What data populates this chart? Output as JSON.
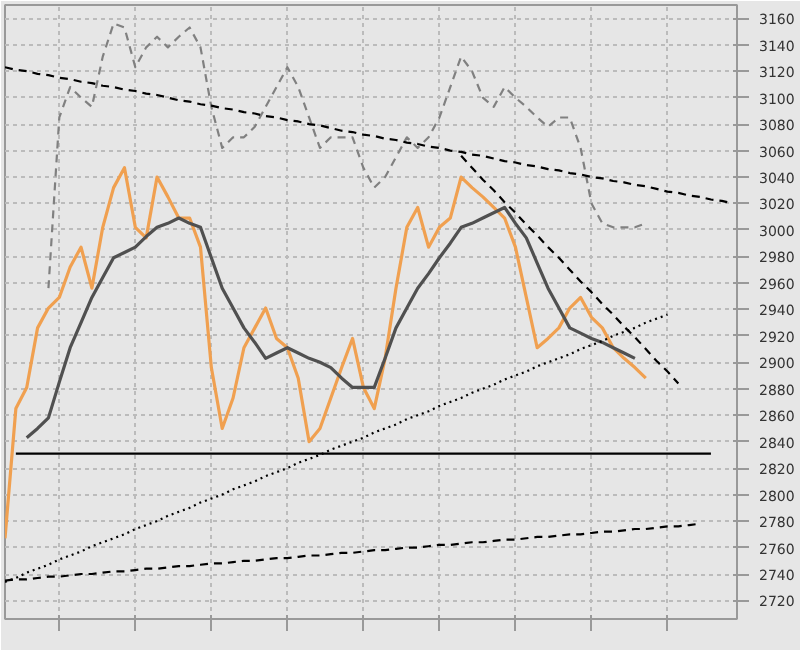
{
  "chart_data": {
    "type": "line",
    "ylim": [
      2706,
      3170
    ],
    "yticks": [
      2720,
      2740,
      2760,
      2780,
      2800,
      2820,
      2840,
      2860,
      2880,
      2900,
      2920,
      2940,
      2960,
      2980,
      3000,
      3020,
      3040,
      3060,
      3080,
      3100,
      3120,
      3140,
      3160
    ],
    "categories": [
      null,
      null,
      null,
      null,
      null,
      null,
      null,
      null,
      null,
      null,
      null,
      null,
      null,
      null,
      null,
      null,
      null,
      null,
      null,
      null,
      null,
      null,
      null,
      null,
      null,
      null,
      null,
      null,
      null,
      null,
      null,
      null,
      null,
      null,
      null,
      null,
      null,
      null,
      null,
      null,
      null,
      null,
      null,
      null,
      null,
      null,
      null,
      null,
      null,
      null,
      null,
      null,
      null,
      null,
      null,
      null,
      null,
      null,
      null,
      null,
      null,
      null,
      null,
      null,
      null,
      null,
      null,
      null
    ],
    "tick_labels": "y",
    "grid": true,
    "series": [
      {
        "color": "#f0a050",
        "line_style": "solid",
        "values": [
          2767,
          2865,
          2881,
          2926,
          2941,
          2949,
          2972,
          2987,
          2956,
          3002,
          3032,
          3047,
          3002,
          2994,
          3040,
          3025,
          3009,
          3009,
          2987,
          2896,
          2850,
          2873,
          2911,
          2926,
          2941,
          2918,
          2911,
          2888,
          2840,
          2850,
          2873,
          2896,
          2918,
          2881,
          2865,
          2903,
          2956,
          3002,
          3017,
          2987,
          3002,
          3009,
          3040,
          3032,
          3025,
          3017,
          3009,
          2987,
          2949,
          2911,
          2918,
          2926,
          2941,
          2949,
          2934,
          2926,
          2911,
          2903,
          2896,
          2888,
          null,
          null,
          null,
          null,
          null,
          null,
          null,
          null
        ]
      },
      {
        "color": "#505050",
        "line_style": "solid",
        "values": [
          null,
          null,
          2843,
          2850,
          2858,
          2885,
          2911,
          2930,
          2949,
          2964,
          2979,
          2983,
          2987,
          2995,
          3002,
          3005,
          3009,
          3005,
          3002,
          2979,
          2956,
          2941,
          2926,
          2915,
          2903,
          2907,
          2911,
          2907,
          2903,
          2900,
          2896,
          2888,
          2881,
          2881,
          2881,
          2903,
          2926,
          2941,
          2956,
          2967,
          2979,
          2990,
          3002,
          3005,
          3009,
          3013,
          3017,
          3005,
          2994,
          2975,
          2956,
          2941,
          2926,
          2922,
          2918,
          2915,
          2911,
          2907,
          2903,
          null,
          null,
          null,
          null,
          null,
          null,
          null,
          null,
          null
        ]
      },
      {
        "color": "#808080",
        "line_style": "dashed",
        "values": [
          null,
          null,
          null,
          null,
          2956,
          3085,
          3108,
          3100,
          3093,
          3131,
          3156,
          3153,
          3123,
          3138,
          3146,
          3138,
          3146,
          3153,
          3138,
          3093,
          3062,
          3070,
          3070,
          3078,
          3093,
          3108,
          3123,
          3108,
          3085,
          3062,
          3070,
          3070,
          3070,
          3047,
          3032,
          3040,
          3055,
          3070,
          3062,
          3070,
          3085,
          3108,
          3131,
          3120,
          3100,
          3093,
          3108,
          3100,
          3093,
          3085,
          3078,
          3085,
          3085,
          3062,
          3020,
          3005,
          3002,
          3002,
          3002,
          3005,
          null,
          null,
          null,
          null,
          null,
          null,
          null,
          null
        ]
      },
      {
        "color": "#000000",
        "line_style": "dashed",
        "values": [
          3123,
          3121,
          3120,
          3118,
          3117,
          3115,
          3114,
          3112,
          3111,
          3109,
          3108,
          3106,
          3105,
          3103,
          3102,
          3100,
          3098,
          3097,
          3095,
          3094,
          3092,
          3091,
          3089,
          3088,
          3086,
          3085,
          3083,
          3082,
          3080,
          3079,
          3077,
          3075,
          3074,
          3072,
          3071,
          3069,
          3068,
          3066,
          3065,
          3063,
          3062,
          3060,
          3059,
          3057,
          3056,
          3054,
          3052,
          3051,
          3049,
          3048,
          3046,
          3045,
          3043,
          3042,
          3040,
          3039,
          3037,
          3036,
          3034,
          3033,
          3031,
          3029,
          3028,
          3026,
          3025,
          3023,
          3022,
          3020
        ]
      },
      {
        "color": "#000000",
        "line_style": "solid",
        "values": [
          null,
          2831,
          2831,
          2831,
          2831,
          2831,
          2831,
          2831,
          2831,
          2831,
          2831,
          2831,
          2831,
          2831,
          2831,
          2831,
          2831,
          2831,
          2831,
          2831,
          2831,
          2831,
          2831,
          2831,
          2831,
          2831,
          2831,
          2831,
          2831,
          2831,
          2831,
          2831,
          2831,
          2831,
          2831,
          2831,
          2831,
          2831,
          2831,
          2831,
          2831,
          2831,
          2831,
          2831,
          2831,
          2831,
          2831,
          2831,
          2831,
          2831,
          2831,
          2831,
          2831,
          2831,
          2831,
          2831,
          2831,
          2831,
          2831,
          2831,
          2831,
          2831,
          2831,
          2831,
          2831,
          2831,
          null,
          null
        ]
      },
      {
        "color": "#000000",
        "line_style": "dotted",
        "values": [
          2734,
          2737,
          2741,
          2744,
          2747,
          2751,
          2754,
          2757,
          2761,
          2764,
          2767,
          2770,
          2774,
          2777,
          2780,
          2784,
          2787,
          2790,
          2794,
          2797,
          2800,
          2804,
          2807,
          2810,
          2814,
          2817,
          2820,
          2824,
          2827,
          2830,
          2834,
          2837,
          2840,
          2843,
          2847,
          2850,
          2853,
          2857,
          2860,
          2863,
          2867,
          2870,
          2873,
          2877,
          2880,
          2883,
          2887,
          2890,
          2893,
          2897,
          2900,
          2903,
          2906,
          2910,
          2913,
          2916,
          2920,
          2923,
          2926,
          2930,
          2933,
          2936,
          null,
          null,
          null,
          null,
          null,
          null
        ]
      },
      {
        "color": "#000000",
        "line_style": "dashed",
        "values": [
          2735,
          2736,
          2736,
          2737,
          2738,
          2738,
          2739,
          2740,
          2740,
          2741,
          2742,
          2742,
          2743,
          2744,
          2744,
          2745,
          2746,
          2746,
          2747,
          2748,
          2748,
          2749,
          2750,
          2750,
          2751,
          2752,
          2752,
          2753,
          2754,
          2754,
          2755,
          2756,
          2756,
          2757,
          2758,
          2758,
          2759,
          2760,
          2760,
          2761,
          2762,
          2762,
          2763,
          2764,
          2764,
          2765,
          2766,
          2766,
          2767,
          2768,
          2768,
          2769,
          2770,
          2770,
          2771,
          2772,
          2772,
          2773,
          2774,
          2774,
          2775,
          2776,
          2776,
          2777,
          2778,
          null,
          null,
          null
        ]
      },
      {
        "color": "#000000",
        "line_style": "dashed",
        "values": [
          null,
          null,
          null,
          null,
          null,
          null,
          null,
          null,
          null,
          null,
          null,
          null,
          null,
          null,
          null,
          null,
          null,
          null,
          null,
          null,
          null,
          null,
          null,
          null,
          null,
          null,
          null,
          null,
          null,
          null,
          null,
          null,
          null,
          null,
          null,
          null,
          null,
          null,
          null,
          null,
          null,
          null,
          3056,
          3047,
          3038,
          3030,
          3021,
          3013,
          3004,
          2996,
          2987,
          2979,
          2970,
          2961,
          2953,
          2944,
          2936,
          2927,
          2919,
          2910,
          2901,
          2893,
          2884,
          null,
          null,
          null,
          null,
          null
        ]
      }
    ]
  }
}
